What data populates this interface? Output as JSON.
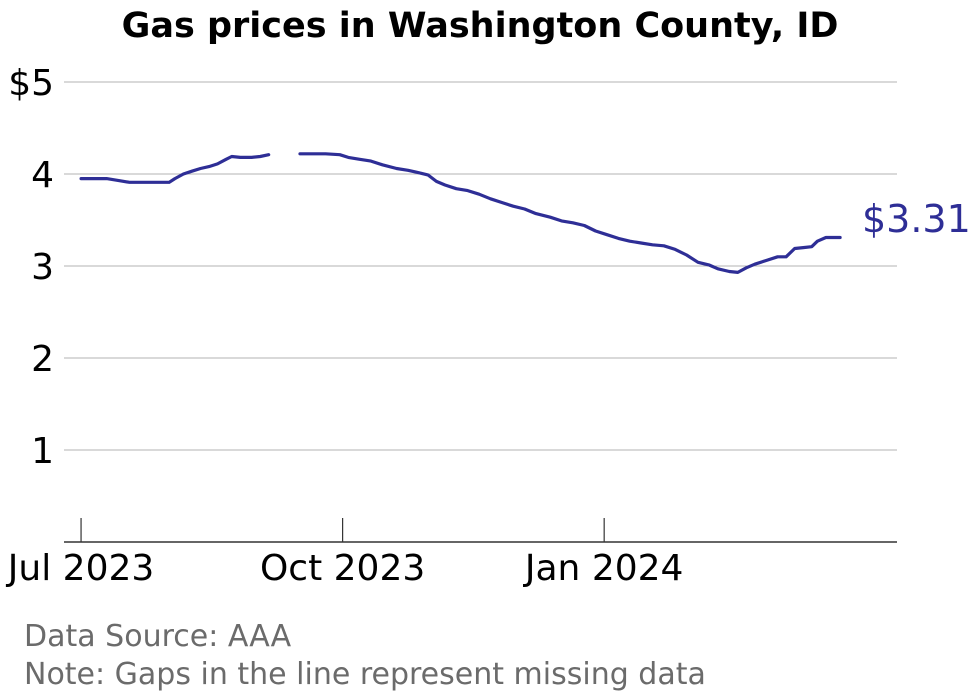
{
  "colors": {
    "line": "#2e2e96",
    "grid": "#b3b3b3",
    "axis": "#333333",
    "footer": "#6b6b6b"
  },
  "footer": {
    "source": "Data Source: AAA",
    "note": "Note: Gaps in the line represent missing data"
  },
  "chart_data": {
    "type": "line",
    "title": "Gas prices in Washington County, ID",
    "xlabel": "",
    "ylabel": "",
    "ylim": [
      0,
      5
    ],
    "xlim": [
      "2023-06-25",
      "2024-04-13"
    ],
    "grid": true,
    "yticks": [
      1,
      2,
      3,
      4,
      5
    ],
    "ytick_labels": [
      "1",
      "2",
      "3",
      "4",
      "$5"
    ],
    "xticks": [
      "2023-07-01",
      "2023-10-01",
      "2024-01-01"
    ],
    "xtick_labels": [
      "Jul 2023",
      "Oct 2023",
      "Jan 2024"
    ],
    "last_value_label": "$3.31",
    "series": [
      {
        "segments": [
          [
            [
              "2023-07-01",
              3.95
            ],
            [
              "2023-07-05",
              3.95
            ],
            [
              "2023-07-10",
              3.95
            ],
            [
              "2023-07-14",
              3.93
            ],
            [
              "2023-07-18",
              3.91
            ],
            [
              "2023-07-22",
              3.91
            ],
            [
              "2023-07-26",
              3.91
            ],
            [
              "2023-07-29",
              3.91
            ],
            [
              "2023-08-01",
              3.91
            ],
            [
              "2023-08-03",
              3.95
            ],
            [
              "2023-08-06",
              4.0
            ],
            [
              "2023-08-09",
              4.03
            ],
            [
              "2023-08-12",
              4.06
            ],
            [
              "2023-08-15",
              4.08
            ],
            [
              "2023-08-18",
              4.11
            ],
            [
              "2023-08-21",
              4.16
            ],
            [
              "2023-08-23",
              4.19
            ],
            [
              "2023-08-26",
              4.18
            ],
            [
              "2023-08-30",
              4.18
            ],
            [
              "2023-09-02",
              4.19
            ],
            [
              "2023-09-05",
              4.21
            ]
          ],
          [
            [
              "2023-09-16",
              4.22
            ],
            [
              "2023-09-20",
              4.22
            ],
            [
              "2023-09-25",
              4.22
            ],
            [
              "2023-09-30",
              4.21
            ],
            [
              "2023-10-03",
              4.18
            ],
            [
              "2023-10-07",
              4.16
            ],
            [
              "2023-10-11",
              4.14
            ],
            [
              "2023-10-15",
              4.1
            ],
            [
              "2023-10-20",
              4.06
            ],
            [
              "2023-10-24",
              4.04
            ],
            [
              "2023-10-27",
              4.02
            ],
            [
              "2023-10-31",
              3.99
            ],
            [
              "2023-11-03",
              3.92
            ],
            [
              "2023-11-06",
              3.88
            ],
            [
              "2023-11-10",
              3.84
            ],
            [
              "2023-11-14",
              3.82
            ],
            [
              "2023-11-18",
              3.78
            ],
            [
              "2023-11-22",
              3.73
            ],
            [
              "2023-11-26",
              3.69
            ],
            [
              "2023-11-30",
              3.65
            ],
            [
              "2023-12-04",
              3.62
            ],
            [
              "2023-12-08",
              3.57
            ],
            [
              "2023-12-13",
              3.53
            ],
            [
              "2023-12-17",
              3.49
            ],
            [
              "2023-12-21",
              3.47
            ],
            [
              "2023-12-25",
              3.44
            ],
            [
              "2023-12-29",
              3.38
            ],
            [
              "2024-01-02",
              3.34
            ],
            [
              "2024-01-06",
              3.3
            ],
            [
              "2024-01-10",
              3.27
            ],
            [
              "2024-01-14",
              3.25
            ],
            [
              "2024-01-18",
              3.23
            ],
            [
              "2024-01-22",
              3.22
            ],
            [
              "2024-01-26",
              3.18
            ],
            [
              "2024-01-30",
              3.12
            ],
            [
              "2024-02-03",
              3.04
            ],
            [
              "2024-02-07",
              3.01
            ],
            [
              "2024-02-10",
              2.97
            ],
            [
              "2024-02-14",
              2.94
            ],
            [
              "2024-02-17",
              2.93
            ],
            [
              "2024-02-20",
              2.98
            ],
            [
              "2024-02-23",
              3.02
            ],
            [
              "2024-02-27",
              3.06
            ],
            [
              "2024-03-02",
              3.1
            ],
            [
              "2024-03-05",
              3.1
            ],
            [
              "2024-03-08",
              3.19
            ],
            [
              "2024-03-11",
              3.2
            ],
            [
              "2024-03-14",
              3.21
            ],
            [
              "2024-03-16",
              3.27
            ],
            [
              "2024-03-19",
              3.31
            ],
            [
              "2024-03-24",
              3.31
            ]
          ]
        ]
      }
    ]
  }
}
